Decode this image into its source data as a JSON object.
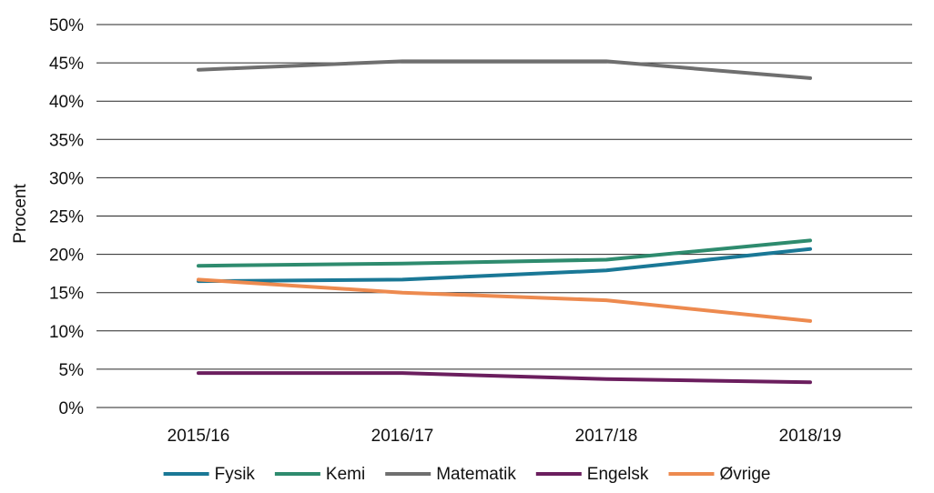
{
  "chart_data": {
    "type": "line",
    "title": "",
    "xlabel": "",
    "ylabel": "Procent",
    "categories": [
      "2015/16",
      "2016/17",
      "2017/18",
      "2018/19"
    ],
    "ylim": [
      0,
      50
    ],
    "yticks": [
      "0%",
      "5%",
      "10%",
      "15%",
      "20%",
      "25%",
      "30%",
      "35%",
      "40%",
      "45%",
      "50%"
    ],
    "ytick_values": [
      0,
      5,
      10,
      15,
      20,
      25,
      30,
      35,
      40,
      45,
      50
    ],
    "grid": true,
    "legend_position": "bottom",
    "series": [
      {
        "name": "Fysik",
        "color": "#1a7896",
        "values": [
          16.5,
          16.7,
          17.9,
          20.7
        ]
      },
      {
        "name": "Kemi",
        "color": "#2e8b6e",
        "values": [
          18.5,
          18.8,
          19.3,
          21.8
        ]
      },
      {
        "name": "Matematik",
        "color": "#6f6f6f",
        "values": [
          44.1,
          45.2,
          45.2,
          43.0
        ]
      },
      {
        "name": "Engelsk",
        "color": "#6b1e5e",
        "values": [
          4.5,
          4.5,
          3.7,
          3.3
        ]
      },
      {
        "name": "Øvrige",
        "color": "#ed8a4f",
        "values": [
          16.7,
          15.0,
          14.0,
          11.3
        ]
      }
    ]
  }
}
